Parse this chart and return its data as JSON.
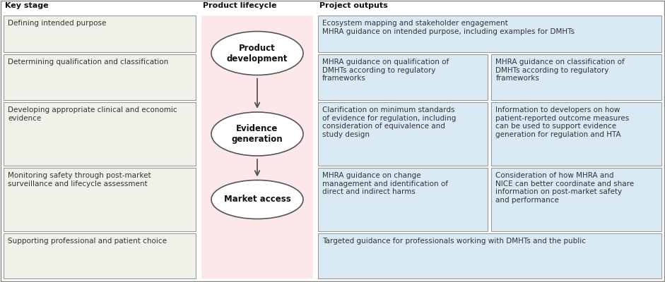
{
  "bg_color": "#ffffff",
  "col1_header": "Key stage",
  "col2_header": "Product lifecycle",
  "col3_header": "Project outputs",
  "left_boxes": [
    "Defining intended purpose",
    "Determining qualification and classification",
    "Developing appropriate clinical and economic\nevidence",
    "Monitoring safety through post-market\nsurveillance and lifecycle assessment",
    "Supporting professional and patient choice"
  ],
  "left_box_color": "#eef2e8",
  "left_box_edge": "#999999",
  "center_bg": "#fce8e8",
  "center_ellipses": [
    "Product\ndevelopment",
    "Evidence\ngeneration",
    "Market access"
  ],
  "ellipse_color": "#ffffff",
  "ellipse_edge": "#555555",
  "right_top_box": "Ecosystem mapping and stakeholder engagement\nMHRA guidance on intended purpose, including examples for DMHTs",
  "right_boxes_left": [
    "MHRA guidance on qualification of\nDMHTs according to regulatory\nframeworks",
    "Clarification on minimum standards\nof evidence for regulation, including\nconsideration of equivalence and\nstudy design",
    "MHRA guidance on change\nmanagement and identification of\ndirect and indirect harms"
  ],
  "right_boxes_right": [
    "MHRA guidance on classification of\nDMHTs according to regulatory\nframeworks",
    "Information to developers on how\npatient-reported outcome measures\ncan be used to support evidence\ngeneration for regulation and HTA",
    "Consideration of how MHRA and\nNICE can better coordinate and share\ninformation on post-market safety\nand performance"
  ],
  "right_bottom_box": "Targeted guidance for professionals working with DMHTs and the public",
  "right_box_color": "#daeaf4",
  "right_box_edge": "#999999",
  "text_color": "#333333",
  "arrow_color": "#555555"
}
